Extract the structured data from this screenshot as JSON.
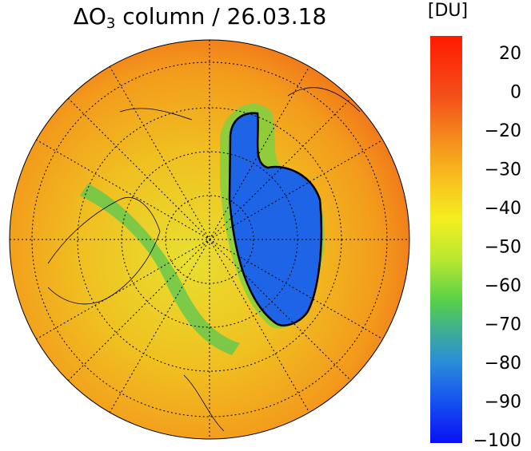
{
  "header": {
    "title_prefix": "ΔO",
    "title_subscript": "3",
    "title_suffix": " column / 26.03.18"
  },
  "colorbar": {
    "unit": "[DU]",
    "ticks": [
      "20",
      "0",
      "−20",
      "−30",
      "−40",
      "−50",
      "−60",
      "−70",
      "−80",
      "−90",
      "−100"
    ]
  }
}
